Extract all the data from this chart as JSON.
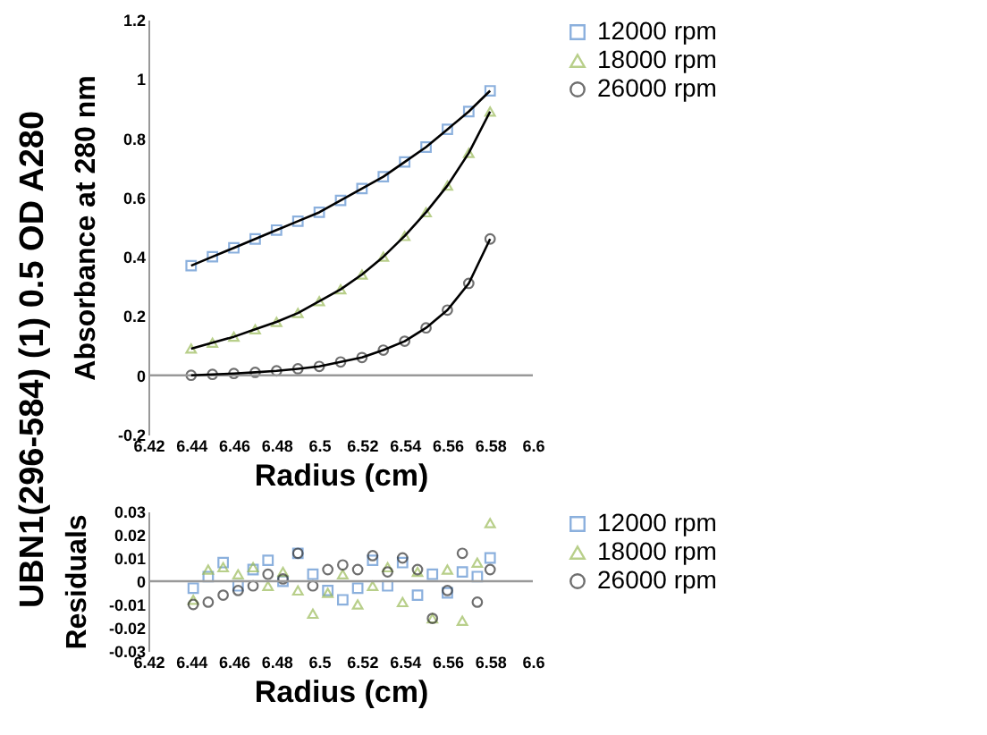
{
  "chart_data": [
    {
      "type": "scatter",
      "title": "UBN1(296-584) (1) 0.5 OD A280",
      "xlabel": "Radius (cm)",
      "ylabel": "Absorbance at 280 nm",
      "x": [
        6.44,
        6.45,
        6.46,
        6.47,
        6.48,
        6.49,
        6.5,
        6.51,
        6.52,
        6.53,
        6.54,
        6.55,
        6.56,
        6.57,
        6.58
      ],
      "series": [
        {
          "name": "12000 rpm",
          "color": "#5b8fd0",
          "marker": "square",
          "values": [
            0.37,
            0.4,
            0.43,
            0.46,
            0.49,
            0.52,
            0.55,
            0.59,
            0.63,
            0.67,
            0.72,
            0.77,
            0.83,
            0.89,
            0.96
          ]
        },
        {
          "name": "18000 rpm",
          "color": "#9bbb59",
          "marker": "triangle",
          "values": [
            0.09,
            0.11,
            0.13,
            0.155,
            0.18,
            0.21,
            0.25,
            0.29,
            0.34,
            0.4,
            0.47,
            0.55,
            0.64,
            0.75,
            0.89
          ]
        },
        {
          "name": "26000 rpm",
          "color": "#333333",
          "marker": "circle",
          "values": [
            0.0,
            0.003,
            0.006,
            0.01,
            0.015,
            0.022,
            0.03,
            0.045,
            0.06,
            0.085,
            0.115,
            0.16,
            0.22,
            0.31,
            0.46
          ]
        },
        {
          "type": "line",
          "color": "#000000",
          "values": [
            0.37,
            0.4,
            0.43,
            0.46,
            0.49,
            0.52,
            0.55,
            0.59,
            0.63,
            0.67,
            0.72,
            0.77,
            0.83,
            0.89,
            0.96
          ]
        },
        {
          "type": "line",
          "color": "#000000",
          "values": [
            0.09,
            0.11,
            0.13,
            0.155,
            0.18,
            0.21,
            0.25,
            0.29,
            0.34,
            0.4,
            0.47,
            0.55,
            0.64,
            0.75,
            0.89
          ]
        },
        {
          "type": "line",
          "color": "#000000",
          "values": [
            0.0,
            0.003,
            0.006,
            0.01,
            0.015,
            0.022,
            0.03,
            0.045,
            0.06,
            0.085,
            0.115,
            0.16,
            0.22,
            0.31,
            0.46
          ]
        }
      ],
      "xlim": [
        6.42,
        6.6
      ],
      "xticks": [
        6.42,
        6.44,
        6.46,
        6.48,
        6.5,
        6.52,
        6.54,
        6.56,
        6.58,
        6.6
      ],
      "ylim": [
        -0.2,
        1.2
      ],
      "yticks": [
        -0.2,
        0,
        0.2,
        0.4,
        0.6,
        0.8,
        1,
        1.2
      ],
      "ref_lines": [
        {
          "axis": "y",
          "value": 0,
          "color": "#999999"
        }
      ],
      "grid": false,
      "legend": "right"
    },
    {
      "type": "scatter",
      "xlabel": "Radius (cm)",
      "ylabel": "Residuals",
      "x": [
        6.441,
        6.448,
        6.455,
        6.462,
        6.469,
        6.476,
        6.483,
        6.49,
        6.497,
        6.504,
        6.511,
        6.518,
        6.525,
        6.532,
        6.539,
        6.546,
        6.553,
        6.56,
        6.567,
        6.574,
        6.58
      ],
      "series": [
        {
          "name": "12000 rpm",
          "color": "#5b8fd0",
          "marker": "square",
          "values": [
            -0.003,
            0.002,
            0.008,
            -0.002,
            0.005,
            0.009,
            0.0,
            0.012,
            0.003,
            -0.004,
            -0.008,
            -0.003,
            0.009,
            -0.002,
            0.008,
            -0.006,
            0.003,
            -0.005,
            0.004,
            0.002,
            0.01
          ]
        },
        {
          "name": "18000 rpm",
          "color": "#9bbb59",
          "marker": "triangle",
          "values": [
            -0.008,
            0.005,
            0.006,
            0.003,
            0.006,
            -0.002,
            0.004,
            -0.004,
            -0.014,
            -0.005,
            0.003,
            -0.01,
            -0.002,
            0.006,
            -0.009,
            0.004,
            -0.016,
            0.005,
            -0.017,
            0.008,
            0.025
          ]
        },
        {
          "name": "26000 rpm",
          "color": "#333333",
          "marker": "circle",
          "values": [
            -0.01,
            -0.009,
            -0.006,
            -0.004,
            -0.002,
            0.003,
            0.001,
            0.012,
            -0.002,
            0.005,
            0.007,
            0.005,
            0.011,
            0.004,
            0.01,
            0.005,
            -0.016,
            -0.004,
            0.012,
            -0.009,
            0.005
          ]
        }
      ],
      "xlim": [
        6.42,
        6.6
      ],
      "xticks": [
        6.42,
        6.44,
        6.46,
        6.48,
        6.5,
        6.52,
        6.54,
        6.56,
        6.58,
        6.6
      ],
      "ylim": [
        -0.03,
        0.03
      ],
      "yticks": [
        -0.03,
        -0.02,
        -0.01,
        0,
        0.01,
        0.02,
        0.03
      ],
      "ref_lines": [
        {
          "axis": "y",
          "value": 0,
          "color": "#999999"
        }
      ],
      "grid": false,
      "legend": "right"
    }
  ]
}
